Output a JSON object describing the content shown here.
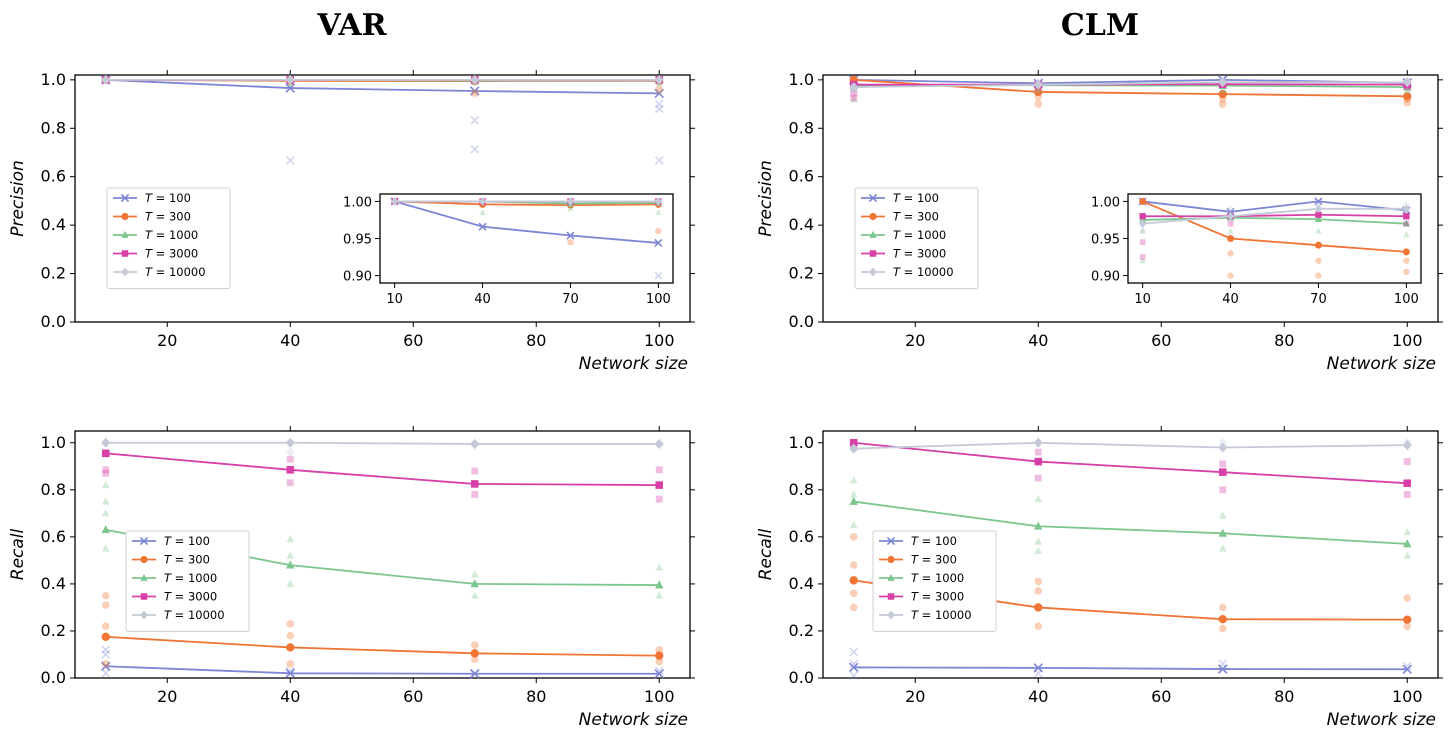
{
  "chart_data": [
    {
      "id": "var-precision",
      "type": "line",
      "title": "VAR",
      "xlabel": "",
      "ylabel": "Precision",
      "xlim": [
        5,
        105
      ],
      "ylim": [
        0,
        1.02
      ],
      "xticks": [
        20,
        40,
        60,
        80,
        100
      ],
      "yticks": [
        0.0,
        0.2,
        0.4,
        0.6,
        0.8,
        1.0
      ],
      "x": [
        10,
        40,
        70,
        100
      ],
      "legend": "center-left",
      "series": [
        {
          "name": "T = 100",
          "values": [
            1.0,
            0.966,
            0.954,
            0.944
          ],
          "scatter": [
            [
              40,
              0.667
            ],
            [
              70,
              0.833
            ],
            [
              70,
              0.714
            ],
            [
              100,
              0.9
            ],
            [
              100,
              0.88
            ],
            [
              100,
              0.667
            ]
          ]
        },
        {
          "name": "T = 300",
          "values": [
            1.0,
            0.996,
            0.995,
            0.996
          ],
          "scatter": [
            [
              70,
              0.945
            ],
            [
              100,
              0.96
            ]
          ]
        },
        {
          "name": "T = 1000",
          "values": [
            1.0,
            1.0,
            0.997,
            0.998
          ],
          "scatter": [
            [
              40,
              0.985
            ],
            [
              70,
              0.99
            ],
            [
              100,
              0.985
            ]
          ]
        },
        {
          "name": "T = 3000",
          "values": [
            1.0,
            1.0,
            1.0,
            1.0
          ],
          "scatter": []
        },
        {
          "name": "T = 10000",
          "values": [
            1.0,
            1.0,
            1.0,
            1.0
          ],
          "scatter": []
        }
      ],
      "inset": {
        "xticks": [
          10,
          40,
          70,
          100
        ],
        "yticks": [
          0.9,
          0.95,
          1.0
        ],
        "xlim": [
          5,
          105
        ],
        "ylim": [
          0.89,
          1.01
        ]
      }
    },
    {
      "id": "clm-precision",
      "type": "line",
      "title": "CLM",
      "xlabel": "",
      "ylabel": "Precision",
      "xlim": [
        5,
        105
      ],
      "ylim": [
        0,
        1.02
      ],
      "xticks": [
        20,
        40,
        60,
        80,
        100
      ],
      "yticks": [
        0.0,
        0.2,
        0.4,
        0.6,
        0.8,
        1.0
      ],
      "x": [
        10,
        40,
        70,
        100
      ],
      "legend": "center-left",
      "series": [
        {
          "name": "T = 100",
          "values": [
            1.0,
            0.986,
            1.0,
            0.988
          ],
          "scatter": [
            [
              40,
              0.98
            ],
            [
              100,
              0.98
            ]
          ]
        },
        {
          "name": "T = 300",
          "values": [
            1.0,
            0.95,
            0.941,
            0.932
          ],
          "scatter": [
            [
              40,
              0.9
            ],
            [
              40,
              0.93
            ],
            [
              70,
              0.9
            ],
            [
              70,
              0.92
            ],
            [
              100,
              0.905
            ],
            [
              100,
              0.92
            ]
          ]
        },
        {
          "name": "T = 1000",
          "values": [
            0.975,
            0.978,
            0.976,
            0.97
          ],
          "scatter": [
            [
              10,
              0.92
            ],
            [
              10,
              0.96
            ],
            [
              40,
              0.96
            ],
            [
              70,
              0.96
            ],
            [
              100,
              0.955
            ]
          ]
        },
        {
          "name": "T = 3000",
          "values": [
            0.98,
            0.98,
            0.982,
            0.98
          ],
          "scatter": [
            [
              10,
              0.925
            ],
            [
              10,
              0.945
            ],
            [
              40,
              0.97
            ],
            [
              100,
              0.97
            ]
          ]
        },
        {
          "name": "T = 10000",
          "values": [
            0.97,
            0.98,
            0.99,
            0.99
          ],
          "scatter": [
            [
              10,
              0.96
            ],
            [
              40,
              0.99
            ],
            [
              70,
              0.995
            ],
            [
              100,
              0.995
            ]
          ]
        }
      ],
      "inset": {
        "xticks": [
          10,
          40,
          70,
          100
        ],
        "yticks": [
          0.9,
          0.95,
          1.0
        ],
        "xlim": [
          5,
          105
        ],
        "ylim": [
          0.89,
          1.01
        ]
      }
    },
    {
      "id": "var-recall",
      "type": "line",
      "xlabel": "Network size",
      "ylabel": "Recall",
      "xlim": [
        5,
        105
      ],
      "ylim": [
        0,
        1.05
      ],
      "xticks": [
        20,
        40,
        60,
        80,
        100
      ],
      "yticks": [
        0.0,
        0.2,
        0.4,
        0.6,
        0.8,
        1.0
      ],
      "x": [
        10,
        40,
        70,
        100
      ],
      "legend": "center-left",
      "series": [
        {
          "name": "T = 100",
          "values": [
            0.05,
            0.02,
            0.018,
            0.018
          ],
          "scatter": [
            [
              10,
              0.1
            ],
            [
              10,
              0.12
            ],
            [
              10,
              0.02
            ],
            [
              40,
              0.03
            ],
            [
              70,
              0.02
            ],
            [
              100,
              0.03
            ]
          ]
        },
        {
          "name": "T = 300",
          "values": [
            0.175,
            0.13,
            0.105,
            0.095
          ],
          "scatter": [
            [
              10,
              0.35
            ],
            [
              10,
              0.31
            ],
            [
              10,
              0.22
            ],
            [
              10,
              0.06
            ],
            [
              40,
              0.23
            ],
            [
              40,
              0.18
            ],
            [
              40,
              0.06
            ],
            [
              70,
              0.14
            ],
            [
              70,
              0.08
            ],
            [
              100,
              0.12
            ],
            [
              100,
              0.07
            ]
          ]
        },
        {
          "name": "T = 1000",
          "values": [
            0.63,
            0.48,
            0.4,
            0.395
          ],
          "scatter": [
            [
              10,
              0.82
            ],
            [
              10,
              0.75
            ],
            [
              10,
              0.7
            ],
            [
              10,
              0.55
            ],
            [
              40,
              0.59
            ],
            [
              40,
              0.52
            ],
            [
              40,
              0.4
            ],
            [
              70,
              0.44
            ],
            [
              70,
              0.35
            ],
            [
              100,
              0.47
            ],
            [
              100,
              0.35
            ]
          ]
        },
        {
          "name": "T = 3000",
          "values": [
            0.955,
            0.885,
            0.825,
            0.82
          ],
          "scatter": [
            [
              10,
              0.885
            ],
            [
              10,
              0.87
            ],
            [
              40,
              0.93
            ],
            [
              40,
              0.83
            ],
            [
              70,
              0.88
            ],
            [
              70,
              0.78
            ],
            [
              100,
              0.885
            ],
            [
              100,
              0.76
            ]
          ]
        },
        {
          "name": "T = 10000",
          "values": [
            1.0,
            1.0,
            0.995,
            0.995
          ],
          "scatter": [
            [
              40,
              0.96
            ],
            [
              70,
              0.99
            ]
          ]
        }
      ]
    },
    {
      "id": "clm-recall",
      "type": "line",
      "xlabel": "Network size",
      "ylabel": "Recall",
      "xlim": [
        5,
        105
      ],
      "ylim": [
        0,
        1.05
      ],
      "xticks": [
        20,
        40,
        60,
        80,
        100
      ],
      "yticks": [
        0.0,
        0.2,
        0.4,
        0.6,
        0.8,
        1.0
      ],
      "x": [
        10,
        40,
        70,
        100
      ],
      "legend": "center-left",
      "series": [
        {
          "name": "T = 100",
          "values": [
            0.045,
            0.043,
            0.038,
            0.037
          ],
          "scatter": [
            [
              10,
              0.11
            ],
            [
              10,
              0.06
            ],
            [
              10,
              0.01
            ],
            [
              40,
              0.02
            ],
            [
              70,
              0.06
            ],
            [
              100,
              0.05
            ]
          ]
        },
        {
          "name": "T = 300",
          "values": [
            0.415,
            0.3,
            0.25,
            0.248
          ],
          "scatter": [
            [
              10,
              0.6
            ],
            [
              10,
              0.48
            ],
            [
              10,
              0.36
            ],
            [
              10,
              0.3
            ],
            [
              40,
              0.41
            ],
            [
              40,
              0.37
            ],
            [
              40,
              0.22
            ],
            [
              70,
              0.3
            ],
            [
              70,
              0.21
            ],
            [
              100,
              0.34
            ],
            [
              100,
              0.22
            ]
          ]
        },
        {
          "name": "T = 1000",
          "values": [
            0.75,
            0.645,
            0.615,
            0.57
          ],
          "scatter": [
            [
              10,
              0.84
            ],
            [
              10,
              0.78
            ],
            [
              10,
              0.65
            ],
            [
              40,
              0.76
            ],
            [
              40,
              0.58
            ],
            [
              40,
              0.54
            ],
            [
              70,
              0.69
            ],
            [
              70,
              0.55
            ],
            [
              100,
              0.62
            ],
            [
              100,
              0.52
            ]
          ]
        },
        {
          "name": "T = 3000",
          "values": [
            1.0,
            0.92,
            0.875,
            0.828
          ],
          "scatter": [
            [
              10,
              0.99
            ],
            [
              40,
              0.96
            ],
            [
              40,
              0.85
            ],
            [
              70,
              0.91
            ],
            [
              70,
              0.8
            ],
            [
              100,
              0.92
            ],
            [
              100,
              0.78
            ]
          ]
        },
        {
          "name": "T = 10000",
          "values": [
            0.975,
            1.0,
            0.98,
            0.99
          ],
          "scatter": [
            [
              10,
              0.97
            ],
            [
              70,
              1.0
            ],
            [
              100,
              1.0
            ]
          ]
        }
      ]
    }
  ],
  "series_colors": [
    "#7c86d4",
    "#f07535",
    "#7dc68e",
    "#d840a8",
    "#c4cad8"
  ],
  "series_markers": [
    "x",
    "circle",
    "triangle",
    "square",
    "diamond"
  ]
}
